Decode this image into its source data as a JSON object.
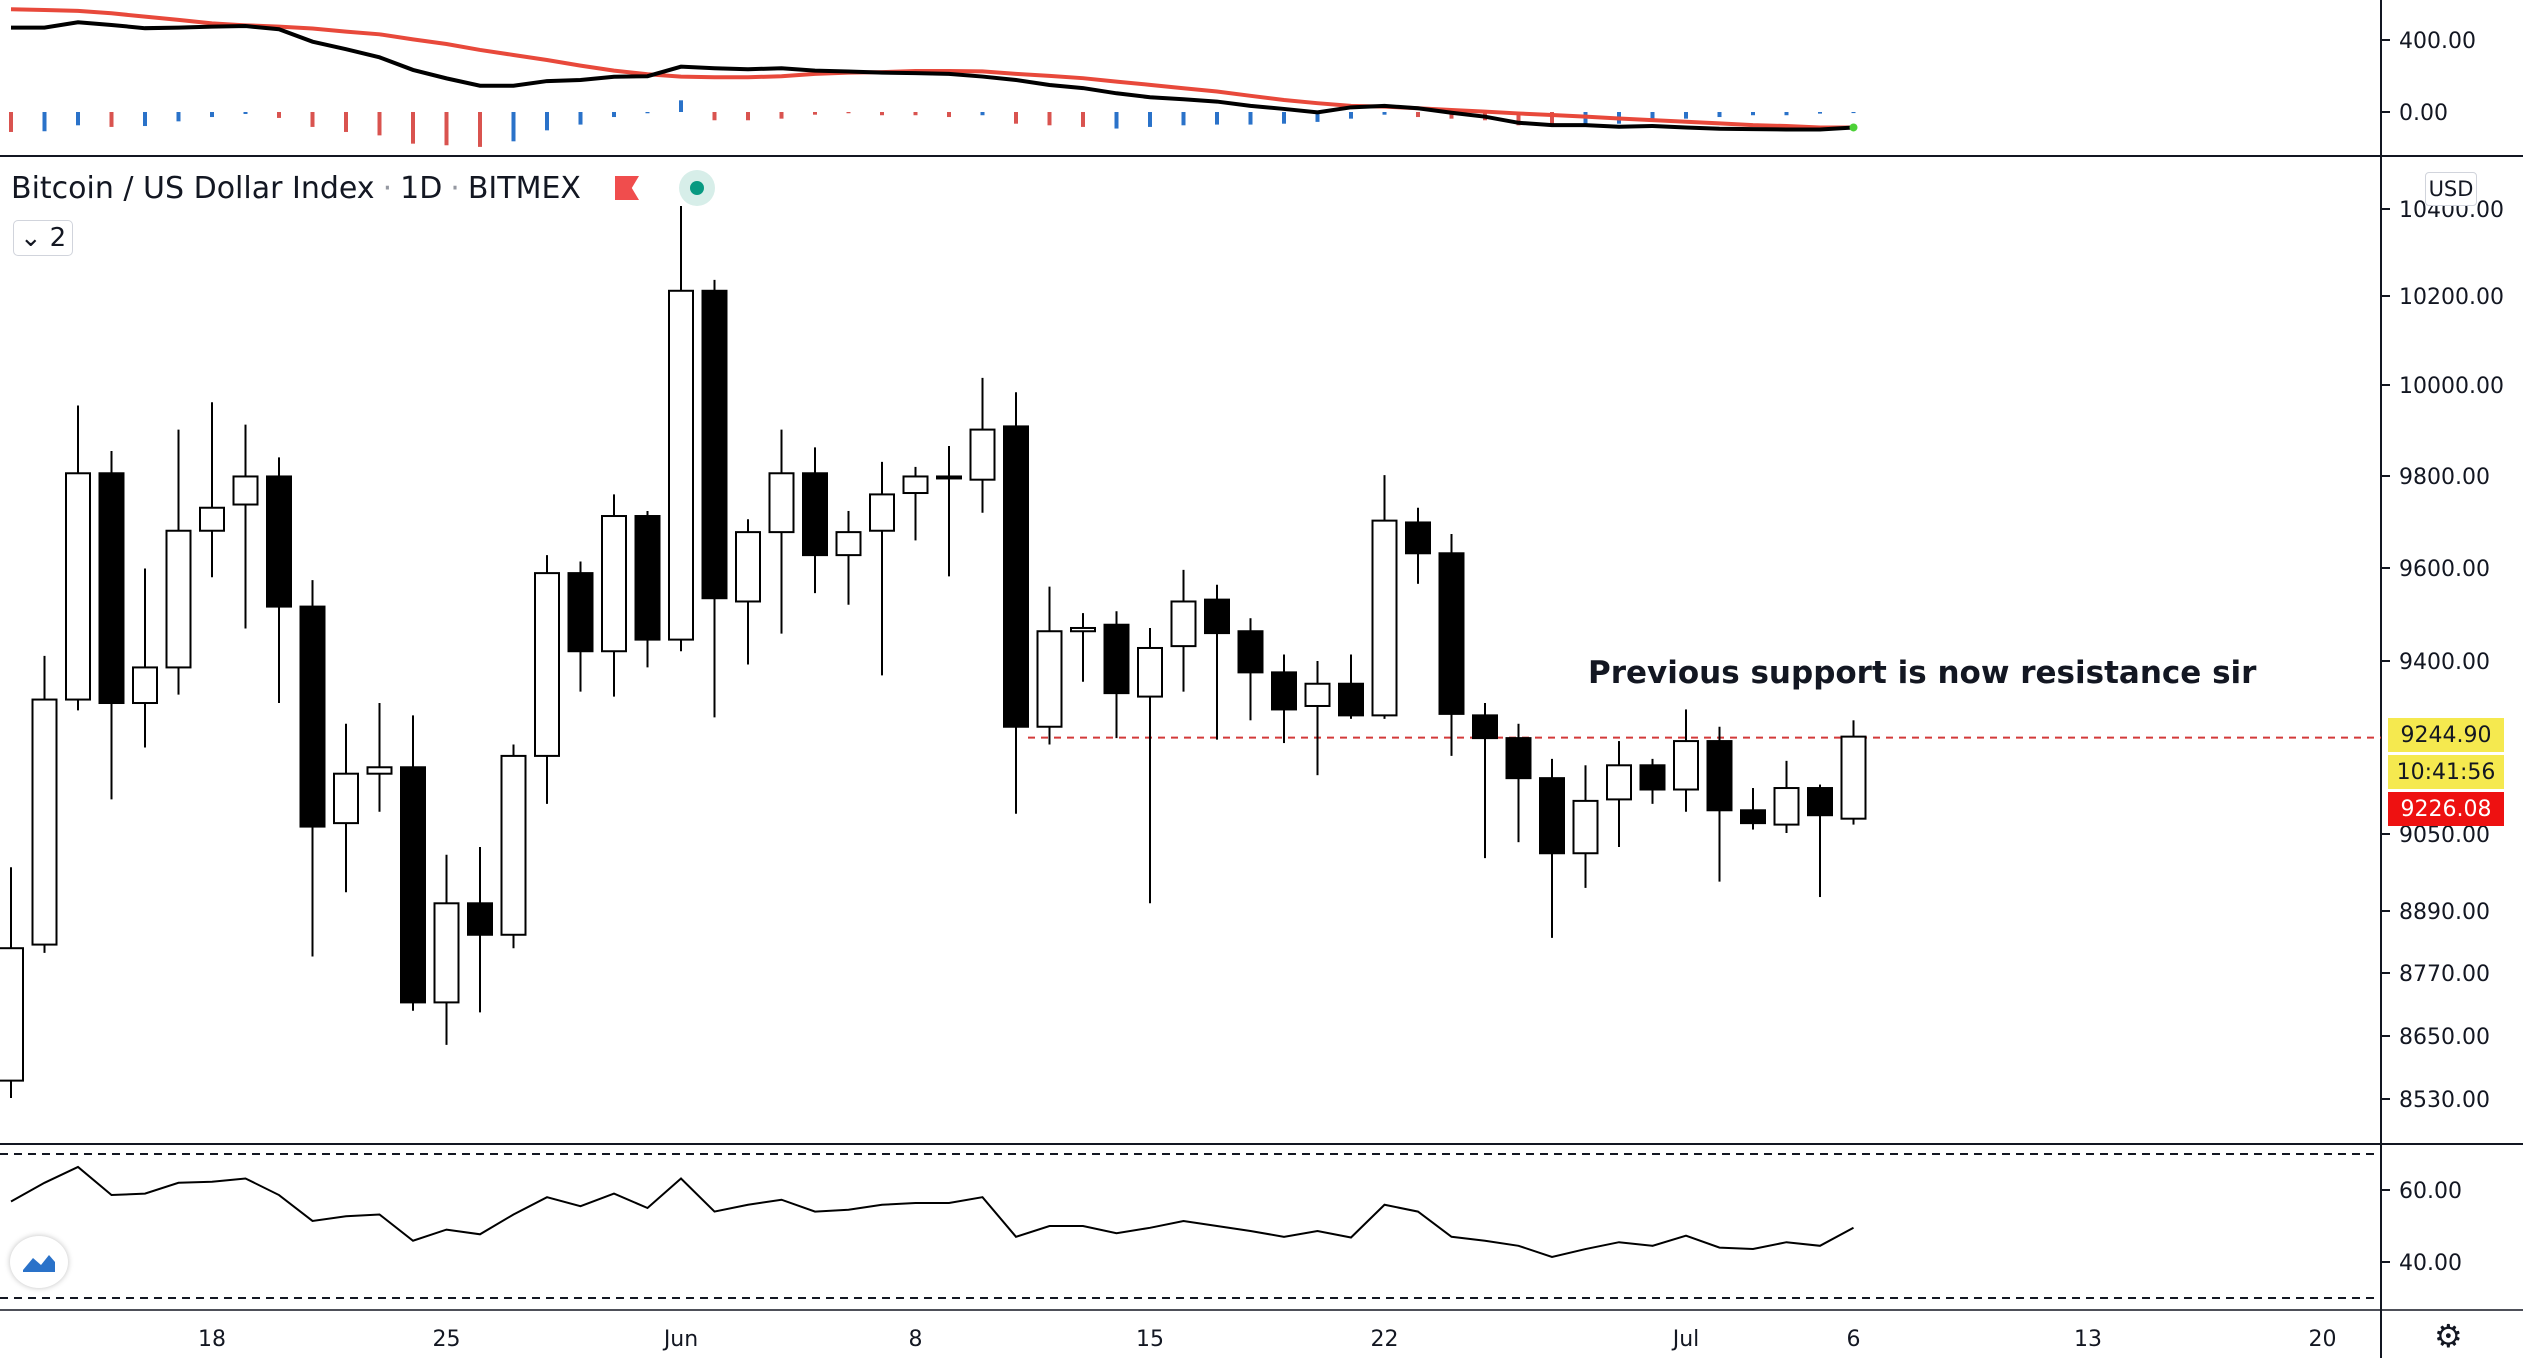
{
  "header": {
    "symbol": "Bitcoin / US Dollar Index",
    "interval": "1D",
    "exchange": "BITMEX",
    "separator": "·",
    "flag_icon": "flag-icon",
    "live_icon": "market-open-dot-icon",
    "collapse_count": "2",
    "collapse_chevron": "⌄"
  },
  "currency_button": "USD",
  "annotation": "Previous support is now resistance sir",
  "price_labels": {
    "line_price": "9244.90",
    "countdown": "10:41:56",
    "last_price": "9226.08"
  },
  "colors": {
    "up_candle": "#ffffff",
    "down_candle": "#000000",
    "macd_line": "#000000",
    "signal_line": "#e8493b",
    "hist_red": "#d9534f",
    "hist_blue": "#2a72c9",
    "line_label_bg": "#f5e94f",
    "last_price_bg": "#ee1111",
    "support_line": "#d33a3a"
  },
  "chart_data": [
    {
      "type": "candlestick",
      "title": "Bitcoin / US Dollar Index · 1D · BITMEX",
      "y_ticks": [
        "10400.00",
        "10200.00",
        "10000.00",
        "9800.00",
        "9600.00",
        "9400.00",
        "9050.00",
        "8890.00",
        "8770.00",
        "8650.00",
        "8530.00"
      ],
      "x_ticks": [
        "18",
        "25",
        "Jun",
        "8",
        "15",
        "22",
        "Jul",
        "6",
        "13",
        "20"
      ],
      "x_range": [
        "2020-05-12",
        "2020-07-06"
      ],
      "horizontal_line": 9244.9,
      "ohlc": [
        [
          8565,
          8981,
          8532,
          8818
        ],
        [
          8825,
          9411,
          8809,
          9322
        ],
        [
          9322,
          9955,
          9300,
          9806
        ],
        [
          9806,
          9855,
          9120,
          9315
        ],
        [
          9315,
          9599,
          9225,
          9387
        ],
        [
          9387,
          9902,
          9332,
          9681
        ],
        [
          9681,
          9962,
          9580,
          9731
        ],
        [
          9738,
          9913,
          9470,
          9799
        ],
        [
          9799,
          9841,
          9315,
          9517
        ],
        [
          9517,
          9574,
          8802,
          9065
        ],
        [
          9072,
          9273,
          8929,
          9172
        ],
        [
          9172,
          9315,
          9095,
          9185
        ],
        [
          9185,
          9290,
          8698,
          8714
        ],
        [
          8714,
          9007,
          8633,
          8906
        ],
        [
          8906,
          9023,
          8695,
          8844
        ],
        [
          8844,
          9231,
          8818,
          9208
        ],
        [
          9208,
          9628,
          9111,
          9589
        ],
        [
          9589,
          9614,
          9338,
          9421
        ],
        [
          9421,
          9760,
          9328,
          9713
        ],
        [
          9713,
          9724,
          9387,
          9446
        ],
        [
          9446,
          10407,
          9421,
          10212
        ],
        [
          10212,
          10237,
          9286,
          9535
        ],
        [
          9528,
          9706,
          9393,
          9678
        ],
        [
          9678,
          9902,
          9459,
          9806
        ],
        [
          9806,
          9863,
          9546,
          9628
        ],
        [
          9628,
          9724,
          9521,
          9678
        ],
        [
          9681,
          9831,
          9371,
          9760
        ],
        [
          9763,
          9820,
          9660,
          9799
        ],
        [
          9795,
          9866,
          9582,
          9799
        ],
        [
          9792,
          10016,
          9720,
          9902
        ],
        [
          9909,
          9984,
          9091,
          9267
        ],
        [
          9267,
          9560,
          9231,
          9464
        ],
        [
          9464,
          9503,
          9358,
          9471
        ],
        [
          9478,
          9507,
          9244,
          9335
        ],
        [
          9328,
          9471,
          8906,
          9428
        ],
        [
          9432,
          9596,
          9338,
          9528
        ],
        [
          9532,
          9564,
          9241,
          9460
        ],
        [
          9464,
          9492,
          9280,
          9377
        ],
        [
          9377,
          9414,
          9234,
          9302
        ],
        [
          9309,
          9400,
          9169,
          9354
        ],
        [
          9354,
          9414,
          9283,
          9290
        ],
        [
          9290,
          9802,
          9283,
          9703
        ],
        [
          9699,
          9731,
          9566,
          9632
        ],
        [
          9632,
          9674,
          9208,
          9293
        ],
        [
          9290,
          9315,
          9000,
          9244
        ],
        [
          9244,
          9273,
          9033,
          9163
        ],
        [
          9163,
          9202,
          8838,
          9010
        ],
        [
          9010,
          9189,
          8938,
          9117
        ],
        [
          9120,
          9238,
          9023,
          9189
        ],
        [
          9189,
          9202,
          9111,
          9140
        ],
        [
          9140,
          9302,
          9095,
          9238
        ],
        [
          9238,
          9267,
          8951,
          9098
        ],
        [
          9098,
          9143,
          9059,
          9072
        ],
        [
          9069,
          9198,
          9052,
          9143
        ],
        [
          9143,
          9150,
          8919,
          9088
        ],
        [
          9081,
          9280,
          9069,
          9247
        ]
      ]
    },
    {
      "type": "line",
      "pane": "top-indicator",
      "y_ticks": [
        "400.00",
        "0.00"
      ],
      "series": [
        {
          "values": [
            469,
            469,
            499,
            484,
            466,
            469,
            475,
            478,
            460,
            391,
            349,
            304,
            234,
            187,
            146,
            146,
            172,
            178,
            196,
            199,
            252,
            243,
            238,
            243,
            230,
            225,
            219,
            216,
            212,
            197,
            178,
            150,
            133,
            104,
            82,
            71,
            58,
            34,
            17,
            -2,
            26,
            34,
            21,
            -4,
            -26,
            -60,
            -73,
            -73,
            -82,
            -78,
            -86,
            -93,
            -95,
            -97,
            -97,
            -86
          ]
        },
        {
          "values": [
            571,
            567,
            562,
            549,
            530,
            512,
            493,
            482,
            475,
            464,
            447,
            432,
            404,
            378,
            345,
            317,
            289,
            258,
            230,
            210,
            197,
            193,
            193,
            199,
            212,
            219,
            222,
            228,
            228,
            226,
            212,
            201,
            188,
            169,
            151,
            132,
            114,
            90,
            67,
            49,
            34,
            30,
            21,
            11,
            2,
            -8,
            -17,
            -26,
            -36,
            -45,
            -54,
            -63,
            -73,
            -78,
            -86,
            -86
          ]
        }
      ],
      "histogram": {
        "values": [
          -111,
          -107,
          -74,
          -83,
          -78,
          -52,
          -28,
          -11,
          -33,
          -83,
          -111,
          -130,
          -176,
          -185,
          -194,
          -163,
          -102,
          -70,
          -28,
          -7,
          65,
          -46,
          -46,
          -37,
          -15,
          -7,
          -18,
          -18,
          -28,
          -18,
          -65,
          -74,
          -83,
          -92,
          -83,
          -74,
          -70,
          -70,
          -65,
          -55,
          -37,
          -15,
          -28,
          -37,
          -46,
          -74,
          -74,
          -65,
          -65,
          -46,
          -37,
          -28,
          -18,
          -18,
          -9,
          -6
        ],
        "colors": [
          "r",
          "b",
          "b",
          "r",
          "b",
          "b",
          "b",
          "b",
          "r",
          "r",
          "r",
          "r",
          "r",
          "r",
          "r",
          "b",
          "b",
          "b",
          "b",
          "b",
          "b",
          "r",
          "r",
          "r",
          "r",
          "r",
          "r",
          "r",
          "r",
          "b",
          "r",
          "r",
          "r",
          "b",
          "b",
          "b",
          "b",
          "b",
          "b",
          "b",
          "b",
          "b",
          "r",
          "r",
          "r",
          "r",
          "r",
          "b",
          "b",
          "b",
          "b",
          "b",
          "b",
          "b",
          "b",
          "b"
        ]
      }
    },
    {
      "type": "line",
      "pane": "bottom-indicator",
      "y_ticks": [
        "60.00",
        "40.00"
      ],
      "bands": [
        70,
        30
      ],
      "values": [
        56.8,
        62,
        66.4,
        58.6,
        59,
        62,
        62.3,
        63.2,
        58.6,
        51.4,
        52.7,
        53.2,
        45.9,
        49,
        47.7,
        53.2,
        58,
        55.5,
        59,
        55,
        63.2,
        54,
        55.9,
        57.3,
        54,
        54.5,
        55.9,
        56.4,
        56.4,
        58,
        47,
        50,
        50,
        48,
        49.5,
        51.4,
        50,
        48.6,
        47,
        48.6,
        46.8,
        55.9,
        54,
        47,
        45.9,
        44.5,
        41.4,
        43.6,
        45.5,
        44.5,
        47.3,
        44,
        43.6,
        45.5,
        44.5,
        49.5
      ]
    }
  ],
  "icons": {
    "logo": "tradingview-logo-icon",
    "settings": "settings-gear-icon"
  }
}
